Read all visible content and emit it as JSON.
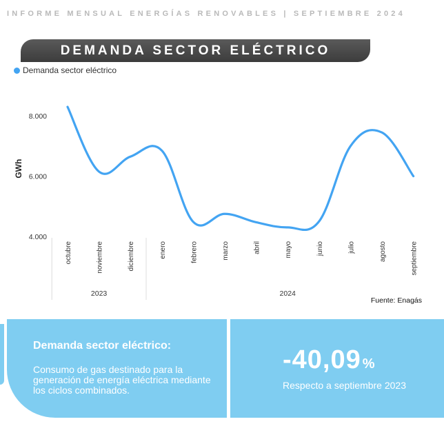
{
  "header": {
    "report_title": "INFORME MENSUAL ENERGÍAS RENOVABLES | SEPTIEMBRE 2024"
  },
  "banner": {
    "title": "DEMANDA SECTOR ELÉCTRICO"
  },
  "chart_data": {
    "type": "line",
    "ylabel": "GWh",
    "ylim": [
      4000,
      8400
    ],
    "yticks": [
      4000,
      6000,
      8000
    ],
    "ytick_labels": [
      "4.000",
      "6.000",
      "8.000"
    ],
    "categories": [
      "octubre",
      "noviembre",
      "diciembre",
      "enero",
      "febrero",
      "marzo",
      "abril",
      "mayo",
      "junio",
      "julio",
      "agosto",
      "septiembre"
    ],
    "year_groups": [
      {
        "label": "2023",
        "months": 3
      },
      {
        "label": "2024",
        "months": 9
      }
    ],
    "series": [
      {
        "name": "Demanda sector eléctrico",
        "color": "#43a4f2",
        "values": [
          8300,
          6150,
          6650,
          6850,
          4480,
          4750,
          4470,
          4300,
          4500,
          7000,
          7450,
          6000
        ]
      }
    ],
    "grid": false,
    "legend_position": "top-left",
    "source": "Fuente: Enagás"
  },
  "summary": {
    "title": "Demanda sector eléctrico:",
    "description": "Consumo de gas destinado para la generación de energía eléctrica mediante los ciclos combinados.",
    "change_value": "-40,09",
    "change_unit": "%",
    "change_note": "Respecto a septiembre 2023"
  }
}
